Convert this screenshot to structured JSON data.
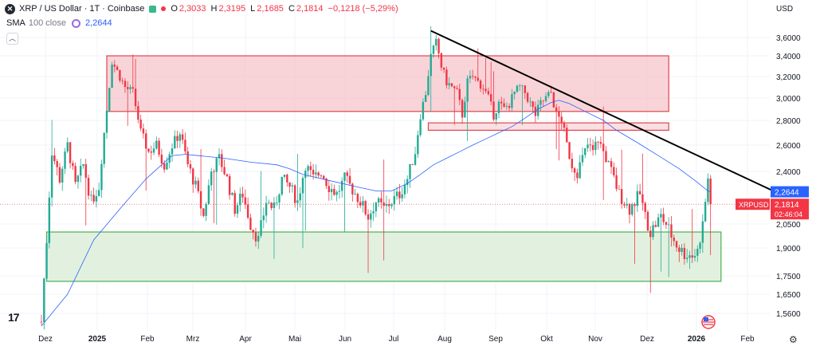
{
  "header": {
    "symbol": "XRP / US Dollar · 1T · Coinbase",
    "open_label": "O",
    "open": "2,3033",
    "high_label": "H",
    "high": "2,3195",
    "low_label": "L",
    "low": "2,1685",
    "close_label": "C",
    "close": "2,1814",
    "change": "−0,1218 (−5,29%)"
  },
  "indicator": {
    "name": "SMA",
    "params": "100 close",
    "value": "2,2644"
  },
  "currency": "USD",
  "tv_logo": "17",
  "colors": {
    "up": "#22ab94",
    "down": "#f23645",
    "sma": "#2962ff",
    "resistance_fill": "#f5c6cb",
    "resistance_border": "#e0454f",
    "support_fill": "#dff0dc",
    "support_border": "#4caf50",
    "trendline": "#000000"
  },
  "chart_data": {
    "type": "candlestick",
    "x_labels": [
      "Dez",
      "2025",
      "Feb",
      "Mrz",
      "Apr",
      "Mai",
      "Jun",
      "Jul",
      "Aug",
      "Sep",
      "Okt",
      "Nov",
      "Dez",
      "2026",
      "Feb"
    ],
    "y_ticks": [
      "3,6000",
      "3,4000",
      "3,2000",
      "3,0000",
      "2,8000",
      "2,6000",
      "2,4000",
      "2,0500",
      "1,9000",
      "1,7500",
      "1,6500",
      "1,5600"
    ],
    "y_tick_values": [
      3.6,
      3.4,
      3.2,
      3.0,
      2.8,
      2.6,
      2.4,
      2.05,
      1.9,
      1.75,
      1.65,
      1.56
    ],
    "price_labels": {
      "sma": {
        "value": 2.2644,
        "text": "2,2644"
      },
      "last": {
        "value": 2.1814,
        "symbol": "XRPUSD",
        "text": "2,1814",
        "countdown": "02:46:04"
      }
    },
    "zones": [
      {
        "name": "resistance-zone-upper",
        "start": 25,
        "end": 240,
        "high": 3.4,
        "low": 2.88
      },
      {
        "name": "resistance-zone-lower",
        "start": 148,
        "end": 240,
        "high": 2.78,
        "low": 2.72
      },
      {
        "name": "support-zone",
        "start": 2,
        "end": 260,
        "high": 2.0,
        "low": 1.72
      }
    ],
    "trendline": {
      "start_index": 149,
      "start_value": 3.67,
      "end_index": 280,
      "end_value": 2.27
    },
    "candles_count": 257,
    "anchors": [
      [
        0,
        1.52
      ],
      [
        2,
        1.95
      ],
      [
        4,
        2.55
      ],
      [
        7,
        2.35
      ],
      [
        10,
        2.6
      ],
      [
        13,
        2.3
      ],
      [
        16,
        2.45
      ],
      [
        19,
        2.2
      ],
      [
        22,
        2.3
      ],
      [
        25,
        2.9
      ],
      [
        27,
        3.35
      ],
      [
        29,
        3.25
      ],
      [
        32,
        3.1
      ],
      [
        35,
        3.05
      ],
      [
        38,
        2.7
      ],
      [
        41,
        2.55
      ],
      [
        44,
        2.6
      ],
      [
        47,
        2.45
      ],
      [
        50,
        2.6
      ],
      [
        53,
        2.7
      ],
      [
        56,
        2.45
      ],
      [
        59,
        2.3
      ],
      [
        62,
        2.1
      ],
      [
        65,
        2.4
      ],
      [
        68,
        2.5
      ],
      [
        71,
        2.35
      ],
      [
        74,
        2.15
      ],
      [
        77,
        2.25
      ],
      [
        80,
        2.05
      ],
      [
        83,
        1.95
      ],
      [
        86,
        2.2
      ],
      [
        89,
        2.15
      ],
      [
        92,
        2.35
      ],
      [
        95,
        2.3
      ],
      [
        98,
        2.2
      ],
      [
        101,
        2.45
      ],
      [
        104,
        2.35
      ],
      [
        107,
        2.4
      ],
      [
        110,
        2.3
      ],
      [
        113,
        2.25
      ],
      [
        116,
        2.35
      ],
      [
        119,
        2.28
      ],
      [
        122,
        2.2
      ],
      [
        125,
        2.1
      ],
      [
        128,
        2.2
      ],
      [
        131,
        2.15
      ],
      [
        134,
        2.2
      ],
      [
        137,
        2.25
      ],
      [
        140,
        2.35
      ],
      [
        143,
        2.55
      ],
      [
        145,
        2.85
      ],
      [
        147,
        3.05
      ],
      [
        149,
        3.4
      ],
      [
        151,
        3.55
      ],
      [
        153,
        3.3
      ],
      [
        155,
        3.15
      ],
      [
        157,
        3.1
      ],
      [
        159,
        3.05
      ],
      [
        161,
        2.85
      ],
      [
        163,
        3.15
      ],
      [
        165,
        3.2
      ],
      [
        167,
        3.15
      ],
      [
        169,
        3.1
      ],
      [
        171,
        3.0
      ],
      [
        173,
        2.85
      ],
      [
        175,
        2.95
      ],
      [
        177,
        2.9
      ],
      [
        179,
        2.95
      ],
      [
        181,
        3.05
      ],
      [
        183,
        3.1
      ],
      [
        185,
        3.05
      ],
      [
        187,
        2.95
      ],
      [
        189,
        2.85
      ],
      [
        191,
        2.95
      ],
      [
        193,
        3.0
      ],
      [
        195,
        3.05
      ],
      [
        197,
        2.85
      ],
      [
        199,
        2.8
      ],
      [
        201,
        2.6
      ],
      [
        203,
        2.45
      ],
      [
        205,
        2.4
      ],
      [
        207,
        2.5
      ],
      [
        209,
        2.6
      ],
      [
        211,
        2.55
      ],
      [
        213,
        2.65
      ],
      [
        215,
        2.55
      ],
      [
        217,
        2.45
      ],
      [
        219,
        2.35
      ],
      [
        221,
        2.25
      ],
      [
        223,
        2.2
      ],
      [
        225,
        2.15
      ],
      [
        227,
        2.2
      ],
      [
        229,
        2.25
      ],
      [
        231,
        2.1
      ],
      [
        233,
        2.0
      ],
      [
        235,
        2.05
      ],
      [
        237,
        2.1
      ],
      [
        239,
        2.05
      ],
      [
        241,
        1.98
      ],
      [
        243,
        1.92
      ],
      [
        245,
        1.88
      ],
      [
        247,
        1.87
      ],
      [
        249,
        1.86
      ],
      [
        251,
        1.88
      ],
      [
        253,
        2.05
      ],
      [
        254,
        2.2
      ],
      [
        255,
        2.35
      ],
      [
        256,
        2.18
      ]
    ],
    "sma_points": [
      [
        0,
        1.5
      ],
      [
        10,
        1.65
      ],
      [
        20,
        1.95
      ],
      [
        30,
        2.15
      ],
      [
        40,
        2.35
      ],
      [
        46,
        2.45
      ],
      [
        50,
        2.52
      ],
      [
        55,
        2.53
      ],
      [
        60,
        2.52
      ],
      [
        70,
        2.5
      ],
      [
        80,
        2.47
      ],
      [
        90,
        2.45
      ],
      [
        95,
        2.42
      ],
      [
        100,
        2.38
      ],
      [
        105,
        2.36
      ],
      [
        110,
        2.34
      ],
      [
        120,
        2.3
      ],
      [
        128,
        2.27
      ],
      [
        134,
        2.27
      ],
      [
        140,
        2.32
      ],
      [
        145,
        2.38
      ],
      [
        150,
        2.45
      ],
      [
        155,
        2.5
      ],
      [
        160,
        2.55
      ],
      [
        165,
        2.6
      ],
      [
        170,
        2.65
      ],
      [
        175,
        2.7
      ],
      [
        180,
        2.75
      ],
      [
        185,
        2.82
      ],
      [
        190,
        2.9
      ],
      [
        195,
        2.96
      ],
      [
        198,
        2.98
      ],
      [
        202,
        2.95
      ],
      [
        208,
        2.88
      ],
      [
        215,
        2.8
      ],
      [
        220,
        2.72
      ],
      [
        228,
        2.62
      ],
      [
        236,
        2.52
      ],
      [
        244,
        2.42
      ],
      [
        250,
        2.34
      ],
      [
        255,
        2.27
      ],
      [
        256,
        2.2644
      ]
    ]
  }
}
